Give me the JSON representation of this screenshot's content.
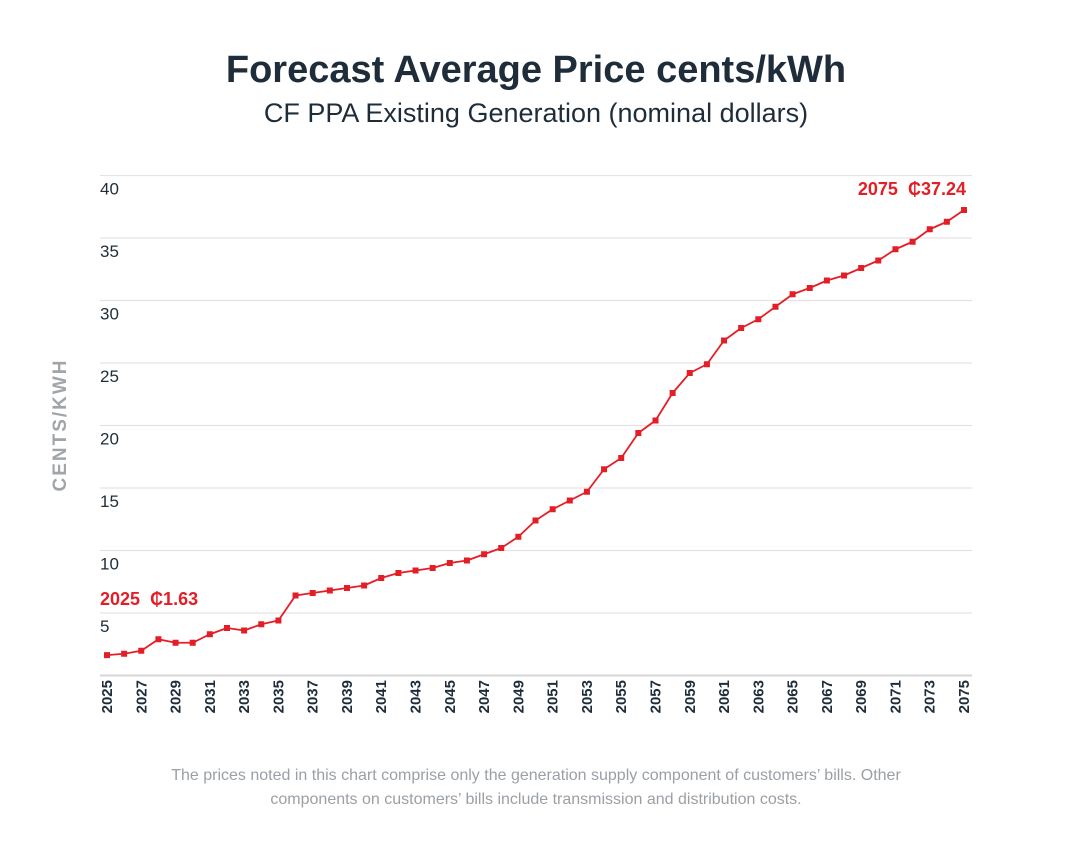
{
  "chart_data": {
    "type": "line",
    "title": "Forecast Average Price cents/kWh",
    "subtitle": "CF PPA Existing Generation (nominal dollars)",
    "xlabel": "",
    "ylabel": "CENTS/KWH",
    "ylim": [
      0,
      40
    ],
    "yticks": [
      "5",
      "10",
      "15",
      "20",
      "25",
      "30",
      "35",
      "40"
    ],
    "grid": true,
    "x": [
      2025,
      2026,
      2027,
      2028,
      2029,
      2030,
      2031,
      2032,
      2033,
      2034,
      2035,
      2036,
      2037,
      2038,
      2039,
      2040,
      2041,
      2042,
      2043,
      2044,
      2045,
      2046,
      2047,
      2048,
      2049,
      2050,
      2051,
      2052,
      2053,
      2054,
      2055,
      2056,
      2057,
      2058,
      2059,
      2060,
      2061,
      2062,
      2063,
      2064,
      2065,
      2066,
      2067,
      2068,
      2069,
      2070,
      2071,
      2072,
      2073,
      2074,
      2075
    ],
    "xticks": [
      "2025",
      "2027",
      "2029",
      "2031",
      "2033",
      "2035",
      "2037",
      "2039",
      "2041",
      "2043",
      "2045",
      "2047",
      "2049",
      "2051",
      "2053",
      "2055",
      "2057",
      "2059",
      "2061",
      "2063",
      "2065",
      "2067",
      "2069",
      "2071",
      "2073",
      "2075"
    ],
    "series": [
      {
        "color": "#e31e26",
        "values": [
          1.63,
          1.74,
          1.98,
          2.9,
          2.62,
          2.62,
          3.3,
          3.8,
          3.6,
          4.1,
          4.4,
          6.4,
          6.6,
          6.8,
          7.0,
          7.2,
          7.8,
          8.2,
          8.4,
          8.6,
          9.0,
          9.2,
          9.7,
          10.2,
          11.1,
          12.4,
          13.3,
          14.0,
          14.7,
          16.5,
          17.4,
          19.4,
          20.4,
          22.6,
          24.2,
          24.9,
          26.8,
          27.8,
          28.5,
          29.5,
          30.5,
          31.0,
          31.6,
          32.0,
          32.6,
          33.2,
          34.1,
          34.7,
          35.7,
          36.3,
          37.24
        ]
      }
    ],
    "annotations": [
      {
        "year": "2025",
        "value": "₵1.63"
      },
      {
        "year": "2075",
        "value": "₵37.24"
      }
    ],
    "footnote": [
      "The prices noted in this chart comprise only the generation supply component of customers’ bills. Other",
      "components on customers’ bills include transmission and distribution costs."
    ],
    "colors": {
      "text": "#1f2d3a",
      "accent": "#e31e26",
      "grid": "#e3e3e3",
      "muted": "#9aa0a5"
    }
  }
}
